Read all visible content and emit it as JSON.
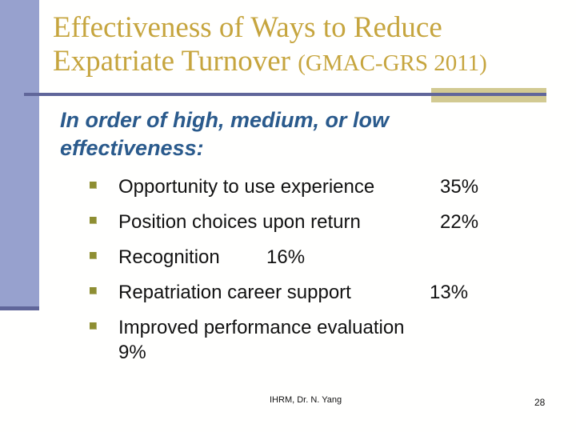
{
  "slide": {
    "title": {
      "line1": "Effectiveness of Ways to Reduce",
      "line2_main": "Expatriate Turnover ",
      "line2_suffix": "(GMAC-GRS 2011)"
    },
    "subtitle": {
      "line1": "In order of high, medium, or low",
      "line2": "effectiveness:"
    },
    "bullets": [
      {
        "label": "Opportunity to use experience",
        "value": "35%"
      },
      {
        "label": "Position choices upon return",
        "value": "22%"
      },
      {
        "label": "Recognition",
        "value": "16%"
      },
      {
        "label": "Repatriation career support",
        "value": "13%"
      },
      {
        "label": "Improved performance evaluation",
        "value": "9%"
      }
    ],
    "footer": {
      "text": "IHRM, Dr. N. Yang",
      "page_number": "28"
    }
  },
  "colors": {
    "background": "#fffffe",
    "title_gold": "#c6a53e",
    "bar_blue": "#97a1ce",
    "rule_slate": "#60669a",
    "accent_tan": "#d2ca92",
    "subtitle_blue": "#2a5a8c",
    "bullet_olive": "#8e8e32"
  }
}
